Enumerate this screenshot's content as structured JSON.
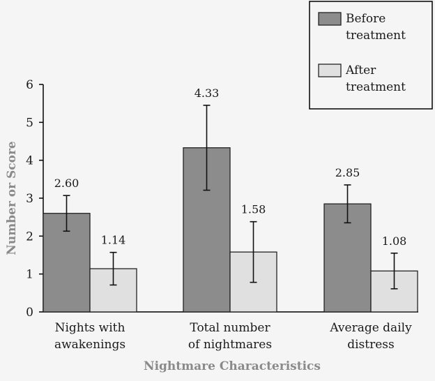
{
  "chart_data": {
    "type": "bar",
    "categories": [
      [
        "Nights with",
        "awakenings"
      ],
      [
        "Total number",
        "of nightmares"
      ],
      [
        "Average daily",
        "distress"
      ]
    ],
    "series": [
      {
        "name": [
          "Before",
          "treatment"
        ],
        "color": "#8c8c8c",
        "values": [
          2.6,
          4.33,
          2.85
        ],
        "labels": [
          "2.60",
          "4.33",
          "2.85"
        ],
        "error": [
          0.47,
          1.12,
          0.5
        ]
      },
      {
        "name": [
          "After",
          "treatment"
        ],
        "color": "#e0e0e0",
        "values": [
          1.14,
          1.58,
          1.08
        ],
        "labels": [
          "1.14",
          "1.58",
          "1.08"
        ],
        "error": [
          0.43,
          0.8,
          0.47
        ]
      }
    ],
    "xlabel": "Nightmare Characteristics",
    "ylabel": "Number or Score",
    "ylim": [
      0,
      6
    ],
    "yticks": [
      0,
      1,
      2,
      3,
      4,
      5,
      6
    ],
    "legend_position": "top-right"
  }
}
